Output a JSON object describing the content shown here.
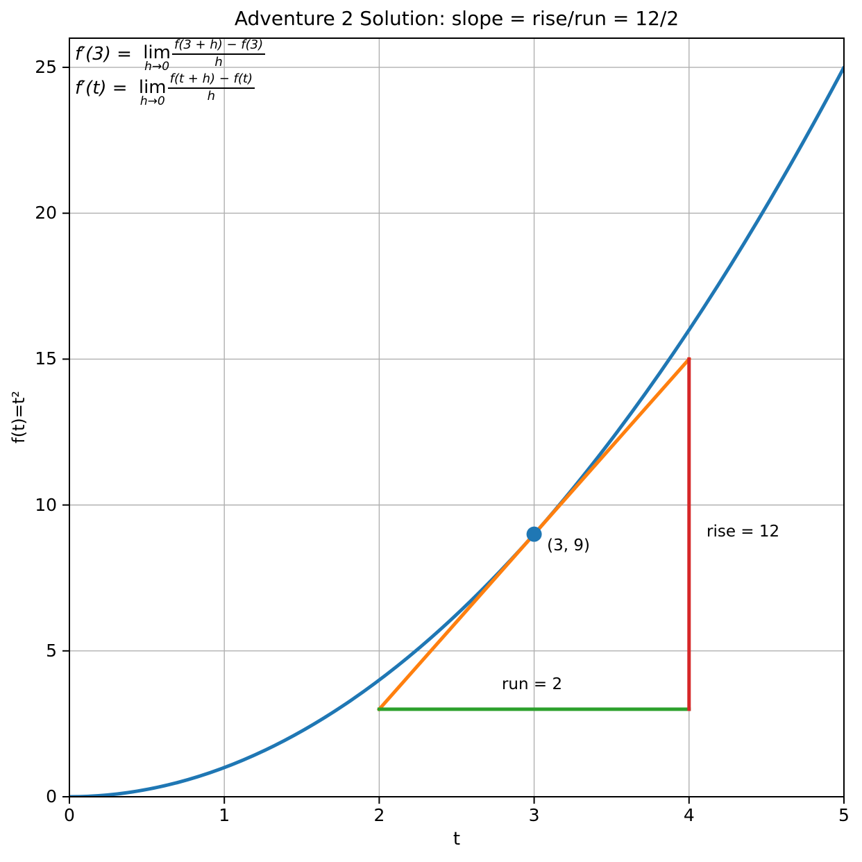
{
  "chart_data": {
    "type": "line",
    "title": "Adventure 2 Solution: slope = rise/run = 12/2",
    "xlabel": "t",
    "ylabel": "f(t)=t²",
    "xlim": [
      0,
      5
    ],
    "ylim": [
      0,
      26
    ],
    "xticks": [
      "0",
      "1",
      "2",
      "3",
      "4",
      "5"
    ],
    "yticks": [
      "0",
      "5",
      "10",
      "15",
      "20",
      "25"
    ],
    "grid": true,
    "grid_color": "#b0b0b0",
    "series": [
      {
        "id": "curve",
        "name": "f(t) = t^2",
        "color": "#1f77b4",
        "kind": "parabola-bezier",
        "p0": [
          0,
          0
        ],
        "p1": [
          2.5,
          0
        ],
        "p2": [
          5,
          25
        ],
        "key_points": [
          [
            0,
            0
          ],
          [
            0.5,
            0.25
          ],
          [
            1,
            1
          ],
          [
            1.5,
            2.25
          ],
          [
            2,
            4
          ],
          [
            2.5,
            6.25
          ],
          [
            3,
            9
          ],
          [
            3.5,
            12.25
          ],
          [
            4,
            16
          ],
          [
            4.5,
            20.25
          ],
          [
            5,
            25
          ]
        ]
      },
      {
        "id": "tangent",
        "name": "tangent line at t=3, slope 6",
        "color": "#ff7f0e",
        "kind": "segment",
        "points": [
          [
            2,
            3
          ],
          [
            4,
            15
          ]
        ]
      },
      {
        "id": "run",
        "name": "run segment",
        "color": "#2ca02c",
        "kind": "segment",
        "points": [
          [
            2,
            3
          ],
          [
            4,
            3
          ]
        ]
      },
      {
        "id": "rise",
        "name": "rise segment",
        "color": "#d62728",
        "kind": "segment",
        "points": [
          [
            4,
            3
          ],
          [
            4,
            15
          ]
        ]
      }
    ],
    "marker": {
      "x": 3,
      "y": 9,
      "color": "#1f77b4",
      "label": "(3, 9)"
    },
    "annotations": [
      {
        "id": "point-label",
        "text": "(3, 9)",
        "x": 3.083,
        "y": 8.92
      },
      {
        "id": "rise-label",
        "text": "rise = 12",
        "x": 4.113,
        "y": 9.4
      },
      {
        "id": "run-label",
        "text": "run = 2",
        "x": 2.791,
        "y": 4.163
      }
    ],
    "slope_rise": 12,
    "slope_run": 2
  },
  "formulas": [
    {
      "lhs": "f′(3) = ",
      "lim": "lim",
      "limsub": "h→0",
      "num": "f(3 + h) − f(3)",
      "den": "h"
    },
    {
      "lhs": "f′(t) = ",
      "lim": "lim",
      "limsub": "h→0",
      "num": "f(t + h) − f(t)",
      "den": "h"
    }
  ]
}
